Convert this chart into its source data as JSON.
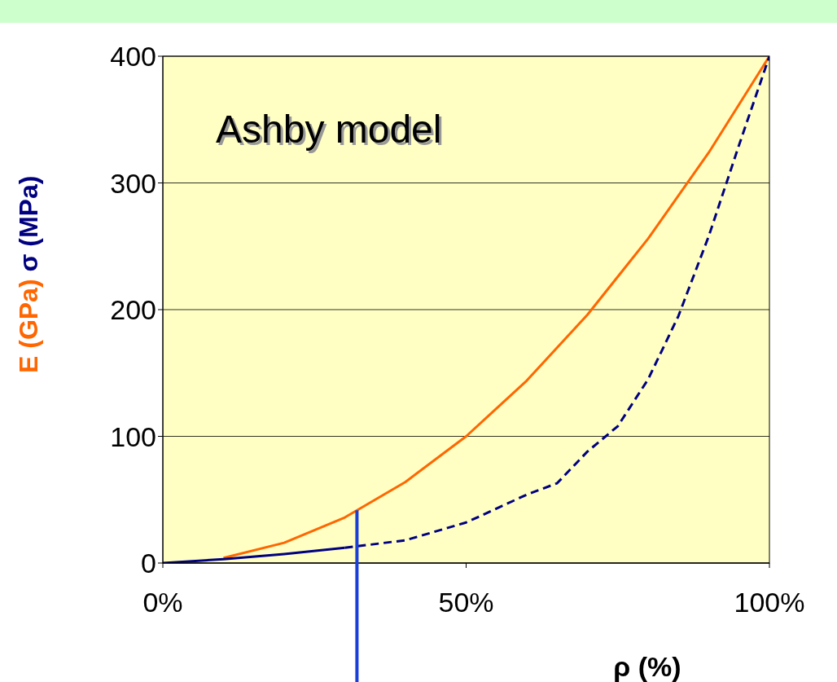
{
  "chart_data": {
    "type": "line",
    "xlabel": "ρ (%)",
    "annotations": [
      "Ashby model"
    ],
    "xlim": [
      0,
      100
    ],
    "ylim": [
      0,
      400
    ],
    "xticks": [
      {
        "value": 0,
        "label": "0%"
      },
      {
        "value": 50,
        "label": "50%"
      },
      {
        "value": 100,
        "label": "100%"
      }
    ],
    "yticks": [
      0,
      100,
      200,
      300,
      400
    ],
    "grid": "y",
    "marker": "none",
    "ref_lines": [
      {
        "axis": "x",
        "value": 32,
        "color": "#1a3fd6"
      }
    ],
    "series": [
      {
        "name": "E (GPa)",
        "color": "#ff6600",
        "x": [
          10,
          20,
          30,
          40,
          50,
          60,
          70,
          80,
          90,
          100
        ],
        "values": [
          4,
          16,
          36,
          64,
          100,
          144,
          196,
          256,
          324,
          400
        ],
        "line_style": "solid"
      },
      {
        "name": "σ (MPa)",
        "color": "#000080",
        "x": [
          0,
          10,
          20,
          30
        ],
        "values": [
          0,
          3,
          7,
          12
        ],
        "line_style": "solid"
      },
      {
        "color": "#000080",
        "x": [
          30,
          40,
          50,
          60,
          65,
          70,
          75,
          80,
          85,
          90,
          95,
          100
        ],
        "values": [
          12,
          18,
          32,
          54,
          63,
          88,
          108,
          145,
          195,
          258,
          330,
          400
        ],
        "line_style": "dashed"
      }
    ]
  }
}
